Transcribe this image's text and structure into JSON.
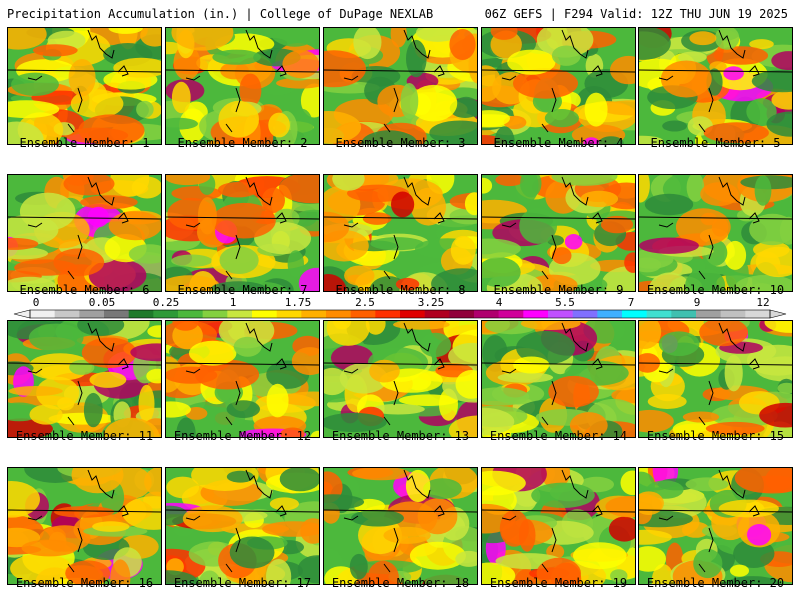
{
  "header": {
    "title": "Precipitation Accumulation (in.) | College of DuPage NEXLAB",
    "valid": "06Z GEFS | F294 Valid: 12Z THU JUN 19 2025"
  },
  "colorbar": {
    "tick_labels": [
      "0",
      "0.05",
      "0.25",
      "1",
      "1.75",
      "2.5",
      "3.25",
      "4",
      "5.5",
      "7",
      "9",
      "12"
    ],
    "colors": [
      "#f0f0f0",
      "#c8c8c8",
      "#a0a0a0",
      "#787878",
      "#1e7a2a",
      "#2e9a38",
      "#4cb83c",
      "#84d040",
      "#c8e640",
      "#ffff00",
      "#ffd800",
      "#ffb000",
      "#ff8c00",
      "#ff6000",
      "#ff3000",
      "#e00000",
      "#b00020",
      "#90003a",
      "#b0006e",
      "#d0009a",
      "#ff00ff",
      "#c050ff",
      "#8070ff",
      "#40b0ff",
      "#00ffff",
      "#40e0d0",
      "#40c0b0",
      "#a0a0a0",
      "#c0c0c0",
      "#d8d8d8"
    ]
  },
  "members": [
    {
      "label": "Ensemble Member: 1"
    },
    {
      "label": "Ensemble Member: 2"
    },
    {
      "label": "Ensemble Member: 3"
    },
    {
      "label": "Ensemble Member: 4"
    },
    {
      "label": "Ensemble Member: 5"
    },
    {
      "label": "Ensemble Member: 6"
    },
    {
      "label": "Ensemble Member: 7"
    },
    {
      "label": "Ensemble Member: 8"
    },
    {
      "label": "Ensemble Member: 9"
    },
    {
      "label": "Ensemble Member: 10"
    },
    {
      "label": "Ensemble Member: 11"
    },
    {
      "label": "Ensemble Member: 12"
    },
    {
      "label": "Ensemble Member: 13"
    },
    {
      "label": "Ensemble Member: 14"
    },
    {
      "label": "Ensemble Member: 15"
    },
    {
      "label": "Ensemble Member: 16"
    },
    {
      "label": "Ensemble Member: 17"
    },
    {
      "label": "Ensemble Member: 18"
    },
    {
      "label": "Ensemble Member: 19"
    },
    {
      "label": "Ensemble Member: 20"
    }
  ]
}
